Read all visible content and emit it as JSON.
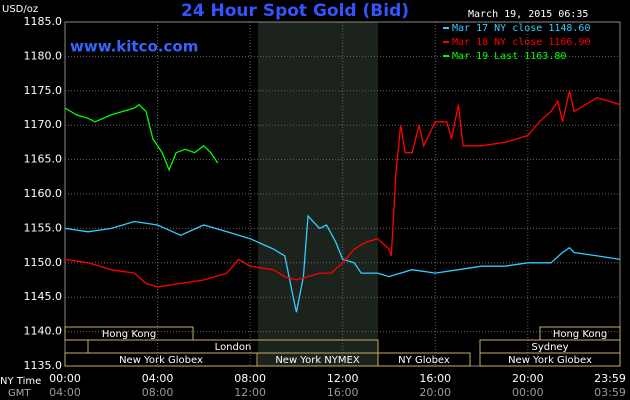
{
  "chart_data": {
    "type": "line",
    "title": "24 Hour Spot Gold (Bid)",
    "y_label": "USD/oz",
    "watermark": "www.kitco.com",
    "timestamp": "March 19, 2015 06:35",
    "x_label": "NY Time",
    "x2_label": "GMT",
    "xlim": [
      0,
      23.983
    ],
    "xticks": [
      {
        "value": 0,
        "label": "00:00"
      },
      {
        "value": 4,
        "label": "04:00"
      },
      {
        "value": 8,
        "label": "08:00"
      },
      {
        "value": 12,
        "label": "12:00"
      },
      {
        "value": 16,
        "label": "16:00"
      },
      {
        "value": 20,
        "label": "20:00"
      },
      {
        "value": 23.983,
        "label": "23:59"
      }
    ],
    "x2ticks": [
      {
        "value": 0,
        "label": "04:00"
      },
      {
        "value": 4,
        "label": "08:00"
      },
      {
        "value": 8,
        "label": "12:00"
      },
      {
        "value": 12,
        "label": "16:00"
      },
      {
        "value": 16,
        "label": "20:00"
      },
      {
        "value": 20,
        "label": "00:00"
      },
      {
        "value": 23.983,
        "label": "03:59"
      }
    ],
    "ylim": [
      1135,
      1185
    ],
    "yticks": [
      {
        "value": 1135,
        "label": "1135.0"
      },
      {
        "value": 1140,
        "label": "1140.0"
      },
      {
        "value": 1145,
        "label": "1145.0"
      },
      {
        "value": 1150,
        "label": "1150.0"
      },
      {
        "value": 1155,
        "label": "1155.0"
      },
      {
        "value": 1160,
        "label": "1160.0"
      },
      {
        "value": 1165,
        "label": "1165.0"
      },
      {
        "value": 1170,
        "label": "1170.0"
      },
      {
        "value": 1175,
        "label": "1175.0"
      },
      {
        "value": 1180,
        "label": "1180.0"
      },
      {
        "value": 1185,
        "label": "1185.0"
      }
    ],
    "grid": true,
    "sessions": [
      "Hong Kong",
      "London",
      "New York Globex",
      "New York NYMEX",
      "NY Globex",
      "Sydney",
      "Hong Kong",
      "New York Globex"
    ],
    "series": [
      {
        "name": "Mar 17 NY close 1148.60",
        "color": "#33ccff",
        "x": [
          0,
          1,
          2,
          3,
          4,
          5,
          6,
          7,
          8,
          9,
          9.5,
          9.8,
          10,
          10.3,
          10.5,
          11,
          11.3,
          11.7,
          12,
          12.5,
          12.8,
          13.5,
          14,
          15,
          16,
          17,
          18,
          19,
          20,
          21,
          21.5,
          21.8,
          22,
          23,
          23.983
        ],
        "values": [
          1155,
          1154.5,
          1155,
          1156,
          1155.5,
          1154,
          1155.5,
          1154.5,
          1153.5,
          1152,
          1151,
          1146,
          1142.8,
          1148,
          1156.8,
          1155,
          1155.5,
          1153,
          1150.5,
          1150,
          1148.5,
          1148.5,
          1148,
          1149,
          1148.5,
          1149,
          1149.5,
          1149.5,
          1150,
          1150,
          1151.5,
          1152.2,
          1151.5,
          1151,
          1150.5
        ]
      },
      {
        "name": "Mar 18 NY close 1166.90",
        "color": "#ff0000",
        "x": [
          0,
          1,
          2,
          3,
          3.5,
          4,
          5,
          6,
          7,
          7.5,
          8,
          9,
          9.5,
          10,
          11,
          11.5,
          12,
          12.5,
          13,
          13.5,
          14,
          14.1,
          14.3,
          14.5,
          14.7,
          15,
          15.3,
          15.5,
          16,
          16.5,
          16.7,
          17,
          17.2,
          18,
          19,
          19.5,
          20,
          20.5,
          21,
          21.3,
          21.5,
          21.8,
          22,
          22.5,
          23,
          23.5,
          23.983
        ],
        "values": [
          1150.5,
          1150,
          1149,
          1148.5,
          1147,
          1146.5,
          1147,
          1147.5,
          1148.5,
          1150.5,
          1149.5,
          1149,
          1148,
          1147.5,
          1148.5,
          1148.5,
          1150,
          1152,
          1153,
          1153.5,
          1152,
          1151,
          1163,
          1170,
          1166,
          1166,
          1170,
          1167,
          1170.5,
          1170.5,
          1168,
          1173,
          1167,
          1167,
          1167.5,
          1168,
          1168.5,
          1170.5,
          1172,
          1173.5,
          1170.5,
          1175,
          1172,
          1173,
          1174,
          1173.5,
          1173
        ]
      },
      {
        "name": "Mar 19 Last 1163.80",
        "color": "#00ff00",
        "x": [
          0,
          0.5,
          1,
          1.3,
          2,
          2.5,
          3,
          3.2,
          3.5,
          3.8,
          4.2,
          4.5,
          4.8,
          5.2,
          5.6,
          6,
          6.3,
          6.6
        ],
        "values": [
          1172.5,
          1171.5,
          1171,
          1170.5,
          1171.5,
          1172,
          1172.5,
          1173,
          1172,
          1168,
          1166,
          1163.5,
          1166,
          1166.5,
          1166,
          1167,
          1166,
          1164.5
        ]
      }
    ]
  }
}
